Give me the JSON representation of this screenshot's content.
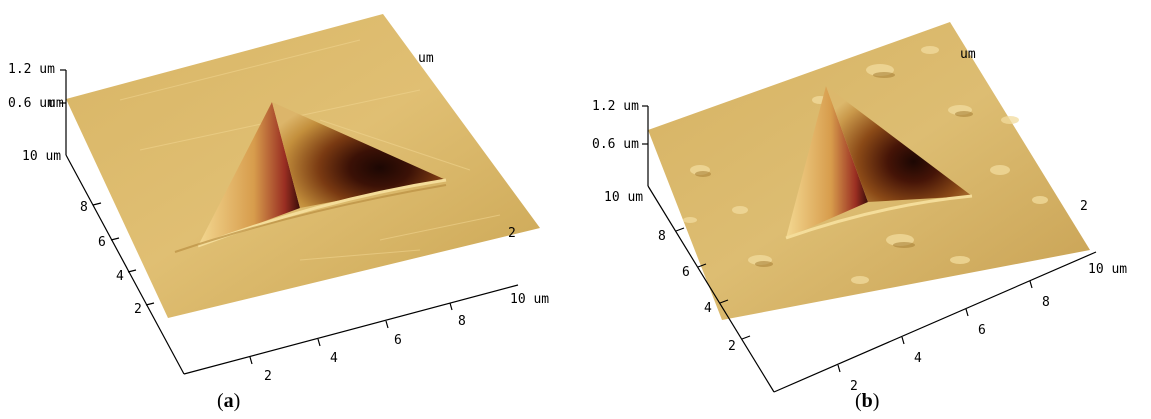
{
  "panels": [
    {
      "id": "a",
      "caption": {
        "open": "(",
        "letter": "a",
        "close": ")"
      },
      "z_ticks": [
        "1.2 um",
        "0.6 um"
      ],
      "y_ticks": [
        "10 um",
        "8",
        "6",
        "4",
        "2"
      ],
      "x_ticks": [
        "2",
        "4",
        "6",
        "8",
        "10 um"
      ],
      "back_labels": [
        "um",
        "um",
        "2"
      ]
    },
    {
      "id": "b",
      "caption": {
        "open": "(",
        "letter": "b",
        "close": ")"
      },
      "z_ticks": [
        "1.2 um",
        "0.6 um"
      ],
      "y_ticks": [
        "10 um",
        "8",
        "6",
        "4",
        "2"
      ],
      "x_ticks": [
        "2",
        "4",
        "6",
        "8",
        "10 um"
      ],
      "back_labels": [
        "um",
        "2"
      ]
    }
  ],
  "colors": {
    "surface_light": "#e2c074",
    "surface_mid": "#c9a14e",
    "pit_dark": "#2a0c06",
    "pit_red": "#8a2a1e",
    "axis": "#000000"
  }
}
